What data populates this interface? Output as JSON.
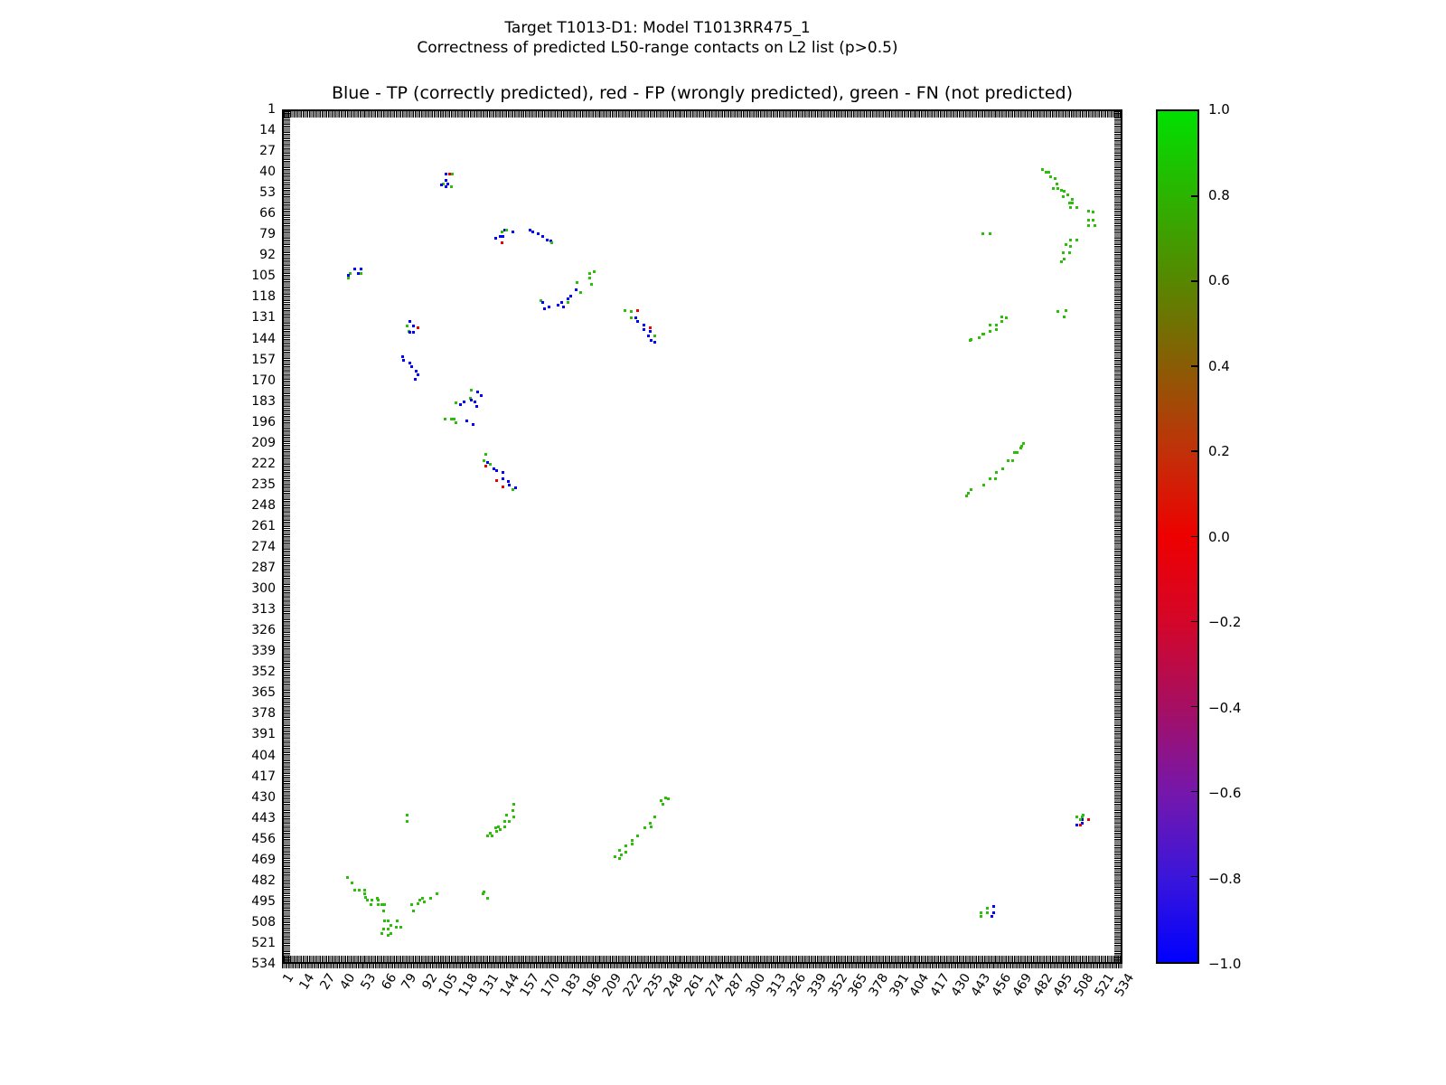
{
  "header": {
    "title": "Target T1013-D1: Model T1013RR475_1",
    "subtitle": "Correctness of predicted L50-range contacts on L2 list (p>0.5)"
  },
  "chart_data": {
    "type": "scatter",
    "legend_text": "Blue - TP (correctly predicted), red - FP (wrongly predicted), green - FN (not predicted)",
    "xlabel": "",
    "ylabel": "",
    "xlim": [
      1,
      534
    ],
    "ylim": [
      1,
      534
    ],
    "y_axis_inverted": true,
    "grid": false,
    "x_ticks": [
      1,
      14,
      27,
      40,
      53,
      66,
      79,
      92,
      105,
      118,
      131,
      144,
      157,
      170,
      183,
      196,
      209,
      222,
      235,
      248,
      261,
      274,
      287,
      300,
      313,
      326,
      339,
      352,
      365,
      378,
      391,
      404,
      417,
      430,
      443,
      456,
      469,
      482,
      495,
      508,
      521,
      534
    ],
    "y_ticks": [
      1,
      14,
      27,
      40,
      53,
      66,
      79,
      92,
      105,
      118,
      131,
      144,
      157,
      170,
      183,
      196,
      209,
      222,
      235,
      248,
      261,
      274,
      287,
      300,
      313,
      326,
      339,
      352,
      365,
      378,
      391,
      404,
      417,
      430,
      443,
      456,
      469,
      482,
      495,
      508,
      521,
      534
    ],
    "classes": {
      "TP": {
        "label": "TP (correctly predicted)",
        "color": "#0000ff"
      },
      "FP": {
        "label": "FP (wrongly predicted)",
        "color": "#ee0000"
      },
      "FN": {
        "label": "FN (not predicted)",
        "color": "#2dbe0b"
      }
    },
    "colorbar": {
      "range": [
        -1.0,
        1.0
      ],
      "tick_labels": [
        "1.0",
        "0.8",
        "0.6",
        "0.4",
        "0.2",
        "0.0",
        "−0.2",
        "−0.4",
        "−0.6",
        "−0.8",
        "−1.0"
      ],
      "gradient_top_to_bottom": [
        "#00e000",
        "#2cb300",
        "#578700",
        "#8a5c05",
        "#c13109",
        "#ee0000",
        "#d40629",
        "#a60f62",
        "#7617ab",
        "#3b16da",
        "#0000fe"
      ]
    },
    "points": [
      [
        105,
        41,
        "TP"
      ],
      [
        107,
        41,
        "FP"
      ],
      [
        109,
        41,
        "FN"
      ],
      [
        105,
        45,
        "TP"
      ],
      [
        103,
        47,
        "FN"
      ],
      [
        106,
        47,
        "TP"
      ],
      [
        102,
        48,
        "TP"
      ],
      [
        105,
        49,
        "TP"
      ],
      [
        108,
        49,
        "FN"
      ],
      [
        142,
        76,
        "TP"
      ],
      [
        143,
        76,
        "FN"
      ],
      [
        140,
        77,
        "FN"
      ],
      [
        147,
        77,
        "TP"
      ],
      [
        139,
        80,
        "TP"
      ],
      [
        141,
        80,
        "TP"
      ],
      [
        136,
        81,
        "TP"
      ],
      [
        140,
        84,
        "FP"
      ],
      [
        158,
        76,
        "TP"
      ],
      [
        160,
        77,
        "TP"
      ],
      [
        163,
        78,
        "TP"
      ],
      [
        166,
        80,
        "TP"
      ],
      [
        169,
        82,
        "TP"
      ],
      [
        171,
        83,
        "TP"
      ],
      [
        172,
        84,
        "FN"
      ],
      [
        47,
        100,
        "TP"
      ],
      [
        51,
        100,
        "TP"
      ],
      [
        44,
        103,
        "FN"
      ],
      [
        49,
        103,
        "TP"
      ],
      [
        51,
        103,
        "FN"
      ],
      [
        43,
        104,
        "TP"
      ],
      [
        43,
        106,
        "FN"
      ],
      [
        82,
        133,
        "TP"
      ],
      [
        80,
        136,
        "FN"
      ],
      [
        84,
        136,
        "TP"
      ],
      [
        87,
        137,
        "FP"
      ],
      [
        81,
        139,
        "FN"
      ],
      [
        82,
        140,
        "TP"
      ],
      [
        84,
        140,
        "TP"
      ],
      [
        77,
        155,
        "TP"
      ],
      [
        78,
        157,
        "TP"
      ],
      [
        82,
        159,
        "TP"
      ],
      [
        83,
        161,
        "TP"
      ],
      [
        86,
        164,
        "TP"
      ],
      [
        87,
        166,
        "TP"
      ],
      [
        85,
        169,
        "TP"
      ],
      [
        121,
        176,
        "FN"
      ],
      [
        125,
        177,
        "TP"
      ],
      [
        127,
        179,
        "TP"
      ],
      [
        120,
        181,
        "FN"
      ],
      [
        121,
        182,
        "TP"
      ],
      [
        123,
        183,
        "TP"
      ],
      [
        116,
        183,
        "TP"
      ],
      [
        111,
        184,
        "FN"
      ],
      [
        114,
        185,
        "TP"
      ],
      [
        124,
        186,
        "TP"
      ],
      [
        104,
        194,
        "FN"
      ],
      [
        108,
        194,
        "FN"
      ],
      [
        110,
        194,
        "FN"
      ],
      [
        118,
        195,
        "TP"
      ],
      [
        111,
        196,
        "FN"
      ],
      [
        122,
        197,
        "TP"
      ],
      [
        130,
        216,
        "FN"
      ],
      [
        129,
        220,
        "FN"
      ],
      [
        131,
        221,
        "TP"
      ],
      [
        133,
        222,
        "FN"
      ],
      [
        130,
        223,
        "FP"
      ],
      [
        135,
        225,
        "TP"
      ],
      [
        137,
        226,
        "TP"
      ],
      [
        141,
        227,
        "TP"
      ],
      [
        141,
        231,
        "TP"
      ],
      [
        137,
        232,
        "FP"
      ],
      [
        144,
        233,
        "TP"
      ],
      [
        145,
        235,
        "TP"
      ],
      [
        141,
        236,
        "FP"
      ],
      [
        149,
        237,
        "TP"
      ],
      [
        147,
        238,
        "FN"
      ],
      [
        199,
        102,
        "FN"
      ],
      [
        196,
        103,
        "FN"
      ],
      [
        196,
        106,
        "FN"
      ],
      [
        188,
        109,
        "FN"
      ],
      [
        197,
        110,
        "FN"
      ],
      [
        187,
        113,
        "TP"
      ],
      [
        190,
        115,
        "FN"
      ],
      [
        184,
        117,
        "TP"
      ],
      [
        182,
        119,
        "TP"
      ],
      [
        165,
        120,
        "FN"
      ],
      [
        182,
        121,
        "FN"
      ],
      [
        178,
        121,
        "TP"
      ],
      [
        166,
        121,
        "TP"
      ],
      [
        176,
        123,
        "TP"
      ],
      [
        179,
        124,
        "TP"
      ],
      [
        170,
        124,
        "TP"
      ],
      [
        167,
        125,
        "TP"
      ],
      [
        218,
        126,
        "FN"
      ],
      [
        226,
        126,
        "FP"
      ],
      [
        222,
        127,
        "FN"
      ],
      [
        222,
        131,
        "FN"
      ],
      [
        225,
        131,
        "TP"
      ],
      [
        226,
        133,
        "TP"
      ],
      [
        230,
        135,
        "TP"
      ],
      [
        234,
        137,
        "FP"
      ],
      [
        230,
        138,
        "TP"
      ],
      [
        234,
        139,
        "TP"
      ],
      [
        233,
        142,
        "TP"
      ],
      [
        237,
        142,
        "FN"
      ],
      [
        235,
        145,
        "TP"
      ],
      [
        237,
        146,
        "TP"
      ],
      [
        483,
        38,
        "FN"
      ],
      [
        485,
        40,
        "FN"
      ],
      [
        487,
        40,
        "FN"
      ],
      [
        488,
        43,
        "FN"
      ],
      [
        491,
        44,
        "FN"
      ],
      [
        492,
        47,
        "FN"
      ],
      [
        490,
        50,
        "FN"
      ],
      [
        493,
        50,
        "FN"
      ],
      [
        495,
        51,
        "FN"
      ],
      [
        497,
        52,
        "FN"
      ],
      [
        499,
        54,
        "FN"
      ],
      [
        496,
        55,
        "FN"
      ],
      [
        502,
        57,
        "FN"
      ],
      [
        500,
        59,
        "FN"
      ],
      [
        502,
        59,
        "FN"
      ],
      [
        501,
        62,
        "FN"
      ],
      [
        505,
        62,
        "FN"
      ],
      [
        512,
        64,
        "FN"
      ],
      [
        515,
        65,
        "FN"
      ],
      [
        512,
        70,
        "FN"
      ],
      [
        515,
        70,
        "FN"
      ],
      [
        512,
        73,
        "FN"
      ],
      [
        516,
        73,
        "FN"
      ],
      [
        501,
        82,
        "FN"
      ],
      [
        505,
        82,
        "FN"
      ],
      [
        498,
        85,
        "FN"
      ],
      [
        501,
        86,
        "FN"
      ],
      [
        496,
        90,
        "FN"
      ],
      [
        500,
        90,
        "FN"
      ],
      [
        497,
        94,
        "FN"
      ],
      [
        495,
        96,
        "FN"
      ],
      [
        445,
        78,
        "FN"
      ],
      [
        450,
        78,
        "FN"
      ],
      [
        457,
        130,
        "FN"
      ],
      [
        460,
        131,
        "FN"
      ],
      [
        457,
        133,
        "FN"
      ],
      [
        450,
        135,
        "FN"
      ],
      [
        454,
        135,
        "FN"
      ],
      [
        454,
        138,
        "FN"
      ],
      [
        450,
        139,
        "FN"
      ],
      [
        445,
        141,
        "FN"
      ],
      [
        446,
        141,
        "FN"
      ],
      [
        443,
        143,
        "FN"
      ],
      [
        438,
        144,
        "FN"
      ],
      [
        437,
        145,
        "FN"
      ],
      [
        498,
        126,
        "FN"
      ],
      [
        493,
        127,
        "FN"
      ],
      [
        497,
        130,
        "FN"
      ],
      [
        471,
        209,
        "FN"
      ],
      [
        470,
        211,
        "FN"
      ],
      [
        469,
        212,
        "FN"
      ],
      [
        465,
        215,
        "FN"
      ],
      [
        467,
        215,
        "FN"
      ],
      [
        461,
        220,
        "FN"
      ],
      [
        464,
        220,
        "FN"
      ],
      [
        458,
        225,
        "FN"
      ],
      [
        454,
        227,
        "FN"
      ],
      [
        450,
        231,
        "FN"
      ],
      [
        453,
        231,
        "FN"
      ],
      [
        446,
        235,
        "FN"
      ],
      [
        438,
        238,
        "FN"
      ],
      [
        436,
        240,
        "FN"
      ],
      [
        435,
        242,
        "FN"
      ],
      [
        42,
        480,
        "FN"
      ],
      [
        45,
        483,
        "FN"
      ],
      [
        47,
        488,
        "FN"
      ],
      [
        50,
        488,
        "FN"
      ],
      [
        53,
        488,
        "FN"
      ],
      [
        53,
        490,
        "FN"
      ],
      [
        54,
        492,
        "FN"
      ],
      [
        55,
        494,
        "FN"
      ],
      [
        58,
        494,
        "FN"
      ],
      [
        61,
        493,
        "FN"
      ],
      [
        62,
        494,
        "FN"
      ],
      [
        57,
        497,
        "FN"
      ],
      [
        62,
        497,
        "FN"
      ],
      [
        64,
        497,
        "FN"
      ],
      [
        66,
        497,
        "FN"
      ],
      [
        65,
        501,
        "FN"
      ],
      [
        83,
        497,
        "FN"
      ],
      [
        84,
        501,
        "FN"
      ],
      [
        87,
        496,
        "FN"
      ],
      [
        88,
        494,
        "FN"
      ],
      [
        90,
        493,
        "FN"
      ],
      [
        91,
        495,
        "FN"
      ],
      [
        95,
        493,
        "FN"
      ],
      [
        99,
        490,
        "FN"
      ],
      [
        128,
        490,
        "FN"
      ],
      [
        129,
        489,
        "FN"
      ],
      [
        131,
        493,
        "FN"
      ],
      [
        66,
        507,
        "FN"
      ],
      [
        68,
        507,
        "FN"
      ],
      [
        74,
        507,
        "FN"
      ],
      [
        70,
        510,
        "FN"
      ],
      [
        73,
        511,
        "FN"
      ],
      [
        76,
        511,
        "FN"
      ],
      [
        65,
        512,
        "FN"
      ],
      [
        68,
        512,
        "FN"
      ],
      [
        64,
        515,
        "FN"
      ],
      [
        70,
        515,
        "FN"
      ],
      [
        68,
        516,
        "FN"
      ],
      [
        148,
        434,
        "FN"
      ],
      [
        147,
        438,
        "FN"
      ],
      [
        143,
        441,
        "FN"
      ],
      [
        148,
        442,
        "FN"
      ],
      [
        142,
        445,
        "FN"
      ],
      [
        145,
        445,
        "FN"
      ],
      [
        138,
        448,
        "FN"
      ],
      [
        142,
        448,
        "FN"
      ],
      [
        136,
        449,
        "FN"
      ],
      [
        139,
        450,
        "FN"
      ],
      [
        137,
        451,
        "FN"
      ],
      [
        133,
        452,
        "FN"
      ],
      [
        131,
        454,
        "FN"
      ],
      [
        134,
        454,
        "FN"
      ],
      [
        80,
        441,
        "FN"
      ],
      [
        80,
        445,
        "FN"
      ],
      [
        244,
        430,
        "FN"
      ],
      [
        246,
        431,
        "FN"
      ],
      [
        241,
        432,
        "FN"
      ],
      [
        242,
        434,
        "FN"
      ],
      [
        237,
        442,
        "FN"
      ],
      [
        234,
        446,
        "FN"
      ],
      [
        235,
        448,
        "FN"
      ],
      [
        231,
        449,
        "FN"
      ],
      [
        226,
        454,
        "FN"
      ],
      [
        223,
        457,
        "FN"
      ],
      [
        223,
        459,
        "FN"
      ],
      [
        219,
        460,
        "FN"
      ],
      [
        215,
        463,
        "FN"
      ],
      [
        219,
        464,
        "FN"
      ],
      [
        216,
        466,
        "FN"
      ],
      [
        212,
        467,
        "FN"
      ],
      [
        215,
        468,
        "FN"
      ],
      [
        448,
        499,
        "FN"
      ],
      [
        452,
        498,
        "TP"
      ],
      [
        444,
        502,
        "FN"
      ],
      [
        448,
        502,
        "FN"
      ],
      [
        452,
        502,
        "TP"
      ],
      [
        444,
        504,
        "FN"
      ],
      [
        451,
        504,
        "TP"
      ],
      [
        509,
        441,
        "FN"
      ],
      [
        505,
        442,
        "FN"
      ],
      [
        508,
        442,
        "FN"
      ],
      [
        508,
        444,
        "TP"
      ],
      [
        507,
        444,
        "FN"
      ],
      [
        512,
        444,
        "FP"
      ],
      [
        508,
        446,
        "TP"
      ],
      [
        505,
        447,
        "TP"
      ],
      [
        507,
        447,
        "FP"
      ]
    ]
  }
}
